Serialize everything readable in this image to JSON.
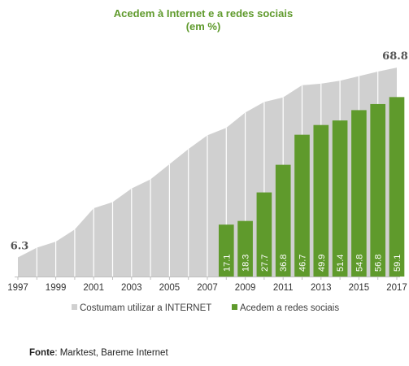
{
  "chart_data": {
    "type": "area+bar",
    "title": "Acedem à Internet e a redes sociais",
    "subtitle": "(em %)",
    "x": [
      1997,
      1998,
      1999,
      2000,
      2001,
      2002,
      2003,
      2004,
      2005,
      2006,
      2007,
      2008,
      2009,
      2010,
      2011,
      2012,
      2013,
      2014,
      2015,
      2016,
      2017
    ],
    "x_tick_labels": [
      "1997",
      "1999",
      "2001",
      "2003",
      "2005",
      "2007",
      "2009",
      "2011",
      "2013",
      "2015",
      "2017"
    ],
    "ylim": [
      0,
      75
    ],
    "grid": false,
    "legend_position": "bottom",
    "series": [
      {
        "name": "Costumam utilizar a INTERNET",
        "type": "area",
        "color": "#d0d0d0",
        "values": [
          6.3,
          9.5,
          11.5,
          15.5,
          22.5,
          24.5,
          29.0,
          32.0,
          37.0,
          42.0,
          46.5,
          49.0,
          54.0,
          57.5,
          59.0,
          63.0,
          63.5,
          64.5,
          66.0,
          67.5,
          68.8
        ],
        "labels": [
          {
            "x": 1997,
            "text": "6.3"
          },
          {
            "x": 2017,
            "text": "68.8"
          }
        ]
      },
      {
        "name": "Acedem a redes sociais",
        "type": "bar",
        "color": "#5f9a2c",
        "x": [
          2008,
          2009,
          2010,
          2011,
          2012,
          2013,
          2014,
          2015,
          2016,
          2017
        ],
        "values": [
          17.1,
          18.3,
          27.7,
          36.8,
          46.7,
          49.9,
          51.4,
          54.8,
          56.8,
          59.1
        ],
        "labels": [
          "17.1",
          "18.3",
          "27.7",
          "36.8",
          "46.7",
          "49.9",
          "51.4",
          "54.8",
          "56.8",
          "59.1"
        ]
      }
    ]
  },
  "source": {
    "label": "Fonte",
    "text": ": Marktest, Bareme Internet"
  }
}
